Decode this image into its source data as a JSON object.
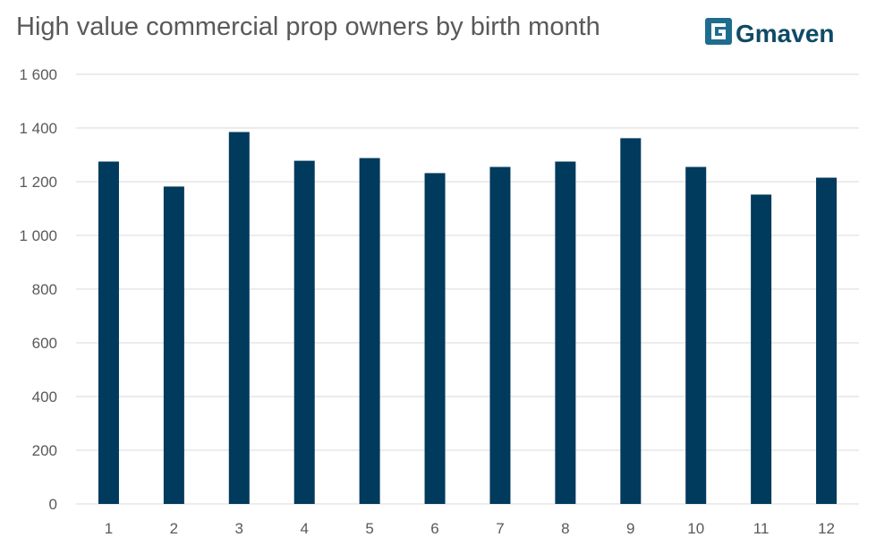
{
  "logo": {
    "text": "Gmaven",
    "colors": {
      "badge": "#1f6d8e",
      "text": "#0f4a66"
    }
  },
  "colors": {
    "bar": "#003a5d",
    "grid": "#d9d9d9",
    "tick_text": "#595959",
    "title": "#595959"
  },
  "chart_data": {
    "type": "bar",
    "title": "High value commercial prop owners by birth month",
    "xlabel": "",
    "ylabel": "",
    "categories": [
      "1",
      "2",
      "3",
      "4",
      "5",
      "6",
      "7",
      "8",
      "9",
      "10",
      "11",
      "12"
    ],
    "values": [
      1275,
      1182,
      1385,
      1278,
      1288,
      1232,
      1255,
      1275,
      1362,
      1255,
      1152,
      1215
    ],
    "ylim": [
      0,
      1600
    ],
    "yticks": [
      0,
      200,
      400,
      600,
      800,
      1000,
      1200,
      1400,
      1600
    ],
    "ytick_labels": [
      "0",
      "200",
      "400",
      "600",
      "800",
      "1 000",
      "1 200",
      "1 400",
      "1 600"
    ],
    "grid": true,
    "legend": "none"
  }
}
